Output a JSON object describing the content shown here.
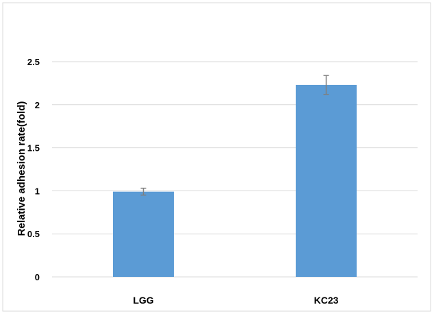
{
  "chart_data": {
    "type": "bar",
    "categories": [
      "LGG",
      "KC23"
    ],
    "values": [
      0.99,
      2.23
    ],
    "errors": [
      0.04,
      0.11
    ],
    "xlabel": "",
    "ylabel": "Relative adhesion rate(fold)",
    "ylim": [
      0,
      2.5
    ],
    "yticks": [
      "0",
      "0.5",
      "1",
      "1.5",
      "2",
      "2.5"
    ],
    "grid": true,
    "legend": "none",
    "colors": {
      "bar": "#5B9BD5",
      "gridline": "#D9D9D9",
      "errorbar": "#7F7F7F",
      "frame": "#D9D9D9"
    }
  }
}
